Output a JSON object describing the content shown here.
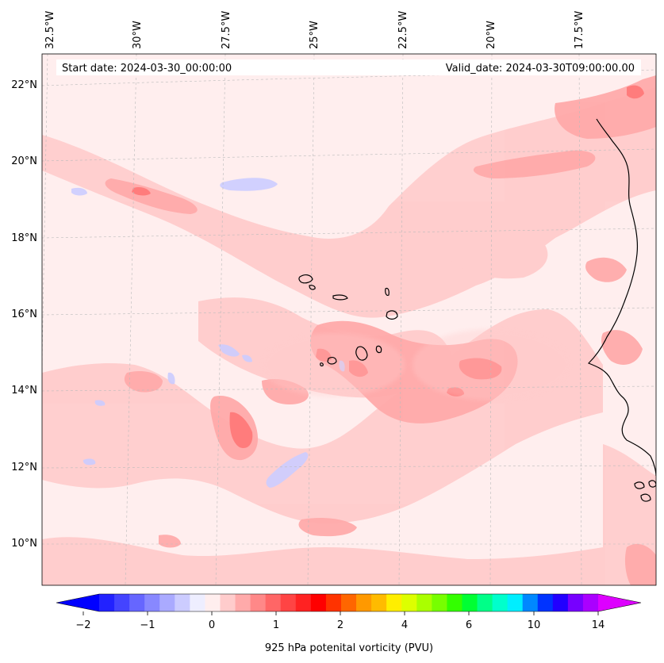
{
  "header": {
    "start_label": "Start date: 2024-03-30_00:00:00",
    "valid_label": "Valid_date: 2024-03-30T09:00:00.00"
  },
  "map": {
    "lon_labels": [
      "32.5°W",
      "30°W",
      "27.5°W",
      "25°W",
      "22.5°W",
      "20°W",
      "17.5°W"
    ],
    "lat_labels": [
      "22°N",
      "20°N",
      "18°N",
      "16°N",
      "14°N",
      "12°N",
      "10°N"
    ]
  },
  "colorbar": {
    "title": "925 hPa potenital vorticity (PVU)",
    "tick_labels": [
      "−2",
      "−1",
      "0",
      "1",
      "2",
      "4",
      "6",
      "10",
      "14"
    ],
    "colors": [
      "#0000ff",
      "#2222ff",
      "#4444ff",
      "#6666ff",
      "#8888ff",
      "#aaaaff",
      "#ccccff",
      "#eeeeff",
      "#ffeeee",
      "#ffcccc",
      "#ffaaaa",
      "#ff8888",
      "#ff6666",
      "#ff4444",
      "#ff2222",
      "#ff0000",
      "#ff3300",
      "#ff6600",
      "#ff9900",
      "#ffbb00",
      "#ffee00",
      "#ddff00",
      "#aaff00",
      "#77ff00",
      "#33ff00",
      "#00ff33",
      "#00ff88",
      "#00ffcc",
      "#00eeff",
      "#0088ff",
      "#0033ff",
      "#2200ff",
      "#7700ff",
      "#aa00ff",
      "#dd00ff"
    ]
  }
}
